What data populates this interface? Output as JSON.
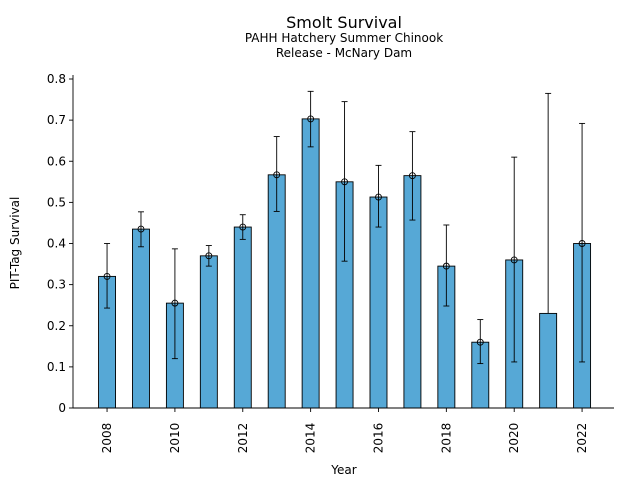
{
  "chart_data": {
    "type": "bar",
    "title": "Smolt Survival",
    "subtitle_lines": [
      "PAHH Hatchery Summer Chinook",
      "Release - McNary Dam"
    ],
    "xlabel": "Year",
    "ylabel": "PIT-Tag Survival",
    "ylim": [
      0,
      0.8
    ],
    "yticks": [
      "0",
      "0.1",
      "0.2",
      "0.3",
      "0.4",
      "0.5",
      "0.6",
      "0.7",
      "0.8"
    ],
    "xtick_labels": [
      "2008",
      "2010",
      "2012",
      "2014",
      "2016",
      "2018",
      "2020",
      "2022"
    ],
    "bar_color": "#56a8d6",
    "categories": [
      "2008",
      "2009",
      "2010",
      "2011",
      "2012",
      "2013",
      "2014",
      "2015",
      "2016",
      "2017",
      "2018",
      "2019",
      "2020",
      "2021",
      "2022"
    ],
    "values": [
      0.32,
      0.435,
      0.255,
      0.37,
      0.44,
      0.567,
      0.703,
      0.55,
      0.513,
      0.565,
      0.345,
      0.16,
      0.36,
      0.23,
      0.4
    ],
    "error_low": [
      0.243,
      0.392,
      0.12,
      0.345,
      0.41,
      0.478,
      0.635,
      0.357,
      0.44,
      0.457,
      0.248,
      0.108,
      0.112,
      null,
      0.112
    ],
    "error_high": [
      0.4,
      0.477,
      0.387,
      0.395,
      0.47,
      0.66,
      0.77,
      0.745,
      0.59,
      0.672,
      0.445,
      0.215,
      0.61,
      0.765,
      0.692
    ],
    "markers": [
      true,
      true,
      true,
      true,
      true,
      true,
      true,
      true,
      true,
      true,
      true,
      true,
      true,
      false,
      true
    ]
  }
}
